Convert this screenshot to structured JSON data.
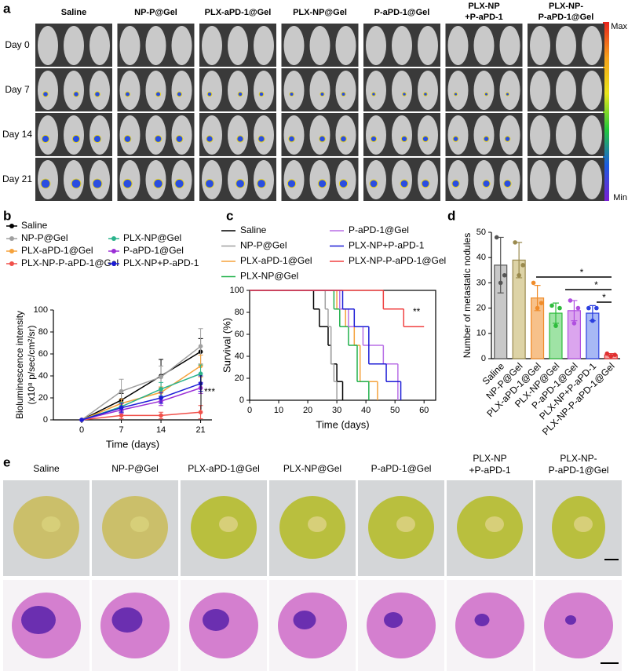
{
  "panel_labels": [
    "a",
    "b",
    "c",
    "d",
    "e"
  ],
  "imaging": {
    "groups": [
      [
        "Saline"
      ],
      [
        "NP-P@Gel"
      ],
      [
        "PLX-aPD-1@Gel"
      ],
      [
        "PLX-NP@Gel"
      ],
      [
        "P-aPD-1@Gel"
      ],
      [
        "PLX-NP",
        "+P-aPD-1"
      ],
      [
        "PLX-NP-",
        "P-aPD-1@Gel"
      ]
    ],
    "days": [
      "Day 0",
      "Day 7",
      "Day 14",
      "Day 21"
    ],
    "colorbar": {
      "max": "Max",
      "min": "Min"
    }
  },
  "chart_data": [
    {
      "type": "line",
      "x": [
        0,
        7,
        14,
        21
      ],
      "xlim": [
        -5,
        23
      ],
      "xticks": [
        0,
        7,
        14,
        21
      ],
      "ylim": [
        0,
        100
      ],
      "yticks": [
        0,
        20,
        40,
        60,
        80,
        100
      ],
      "x_label": "Time (days)",
      "y_label": [
        "Bioluminescence intensity",
        "(x10⁸ p/sec/cm²/sr)"
      ],
      "annotation": "***",
      "series": [
        {
          "name": "Saline",
          "color": "#000000",
          "values": [
            0,
            18,
            40,
            62
          ],
          "errors": [
            0,
            6,
            15,
            12
          ]
        },
        {
          "name": "NP-P@Gel",
          "color": "#a0a0a0",
          "values": [
            0,
            26,
            39,
            67
          ],
          "errors": [
            0,
            11,
            10,
            16
          ]
        },
        {
          "name": "PLX-aPD-1@Gel",
          "color": "#f5a23c",
          "values": [
            0,
            15,
            25,
            49
          ],
          "errors": [
            0,
            4,
            5,
            10
          ]
        },
        {
          "name": "PLX-NP-P-aPD-1@Gel",
          "color": "#f0504a",
          "values": [
            0,
            4,
            4,
            7
          ],
          "errors": [
            0,
            3,
            3,
            6
          ]
        },
        {
          "name": "PLX-NP@Gel",
          "color": "#2bb38c",
          "values": [
            0,
            12,
            28,
            42
          ],
          "errors": [
            0,
            4,
            6,
            8
          ]
        },
        {
          "name": "P-aPD-1@Gel",
          "color": "#9b2fd6",
          "values": [
            0,
            9,
            17,
            29
          ],
          "errors": [
            0,
            3,
            4,
            5
          ]
        },
        {
          "name": "PLX-NP+P-aPD-1",
          "color": "#1c1cd6",
          "values": [
            0,
            11,
            20,
            33
          ],
          "errors": [
            0,
            4,
            5,
            7
          ]
        }
      ]
    },
    {
      "type": "step",
      "xlim": [
        0,
        64
      ],
      "xticks": [
        0,
        10,
        20,
        30,
        40,
        50,
        60
      ],
      "ylim": [
        0,
        100
      ],
      "yticks": [
        0,
        20,
        40,
        60,
        80,
        100
      ],
      "x_label": "Time (days)",
      "y_label": "Survival (%)",
      "annotation": "**",
      "series": [
        {
          "name": "Saline",
          "color": "#000000",
          "x": [
            0,
            22,
            24,
            27,
            28,
            30,
            32
          ],
          "values": [
            100,
            83,
            67,
            50,
            33,
            17,
            0
          ]
        },
        {
          "name": "NP-P@Gel",
          "color": "#a0a0a0",
          "x": [
            0,
            26,
            27,
            28,
            29,
            30
          ],
          "values": [
            100,
            83,
            67,
            33,
            17,
            0
          ]
        },
        {
          "name": "PLX-aPD-1@Gel",
          "color": "#f5a23c",
          "x": [
            0,
            30,
            33,
            36,
            38,
            44
          ],
          "values": [
            100,
            83,
            67,
            50,
            17,
            0
          ]
        },
        {
          "name": "PLX-NP@Gel",
          "color": "#22b14c",
          "x": [
            0,
            29,
            31,
            34,
            37,
            41
          ],
          "values": [
            100,
            83,
            67,
            50,
            17,
            0
          ]
        },
        {
          "name": "P-aPD-1@Gel",
          "color": "#b86ee6",
          "x": [
            0,
            31,
            34,
            39,
            46,
            51
          ],
          "values": [
            100,
            83,
            67,
            50,
            33,
            0
          ]
        },
        {
          "name": "PLX-NP+P-aPD-1",
          "color": "#1c1cd6",
          "x": [
            0,
            32,
            36,
            41,
            47,
            52
          ],
          "values": [
            100,
            83,
            67,
            33,
            17,
            0
          ]
        },
        {
          "name": "PLX-NP-P-aPD-1@Gel",
          "color": "#f04040",
          "x": [
            0,
            46,
            53,
            60
          ],
          "values": [
            100,
            83,
            67,
            67
          ]
        }
      ]
    },
    {
      "type": "bar",
      "categories": [
        "Saline",
        "NP-P@Gel",
        "PLX-aPD-1@Gel",
        "PLX-NP@Gel",
        "P-aPD-1@Gel",
        "PLX-NP+P-aPD-1",
        "PLX-NP-P-aPD-1@Gel"
      ],
      "values": [
        37,
        39,
        24,
        18,
        19,
        18,
        1.5
      ],
      "errors": [
        11,
        7,
        5,
        4,
        4,
        3,
        0.5
      ],
      "points": [
        [
          48,
          30,
          33
        ],
        [
          46,
          33,
          37
        ],
        [
          30,
          20,
          22
        ],
        [
          21,
          13,
          20
        ],
        [
          23,
          14,
          20
        ],
        [
          20,
          15,
          20
        ],
        [
          2,
          1,
          1.5
        ]
      ],
      "colors": [
        "#c8c8c8",
        "#ddd3a6",
        "#f7c18a",
        "#9fe3a5",
        "#dba5ee",
        "#a7b8f5",
        "#f6a6a6"
      ],
      "edge_colors": [
        "#555555",
        "#9a8a4e",
        "#f08c2a",
        "#2ebc3c",
        "#b04fe0",
        "#2b3fe0",
        "#e03030"
      ],
      "ylim": [
        0,
        50
      ],
      "yticks": [
        0,
        10,
        20,
        30,
        40,
        50
      ],
      "y_label": "Number of metastatic nodules",
      "annotations": [
        "*",
        "*",
        "*"
      ]
    }
  ],
  "photos": {
    "groups": [
      [
        "Saline"
      ],
      [
        "NP-P@Gel"
      ],
      [
        "PLX-aPD-1@Gel"
      ],
      [
        "PLX-NP@Gel"
      ],
      [
        "P-aPD-1@Gel"
      ],
      [
        "PLX-NP",
        "+P-aPD-1"
      ],
      [
        "PLX-NP-",
        "P-aPD-1@Gel"
      ]
    ]
  }
}
